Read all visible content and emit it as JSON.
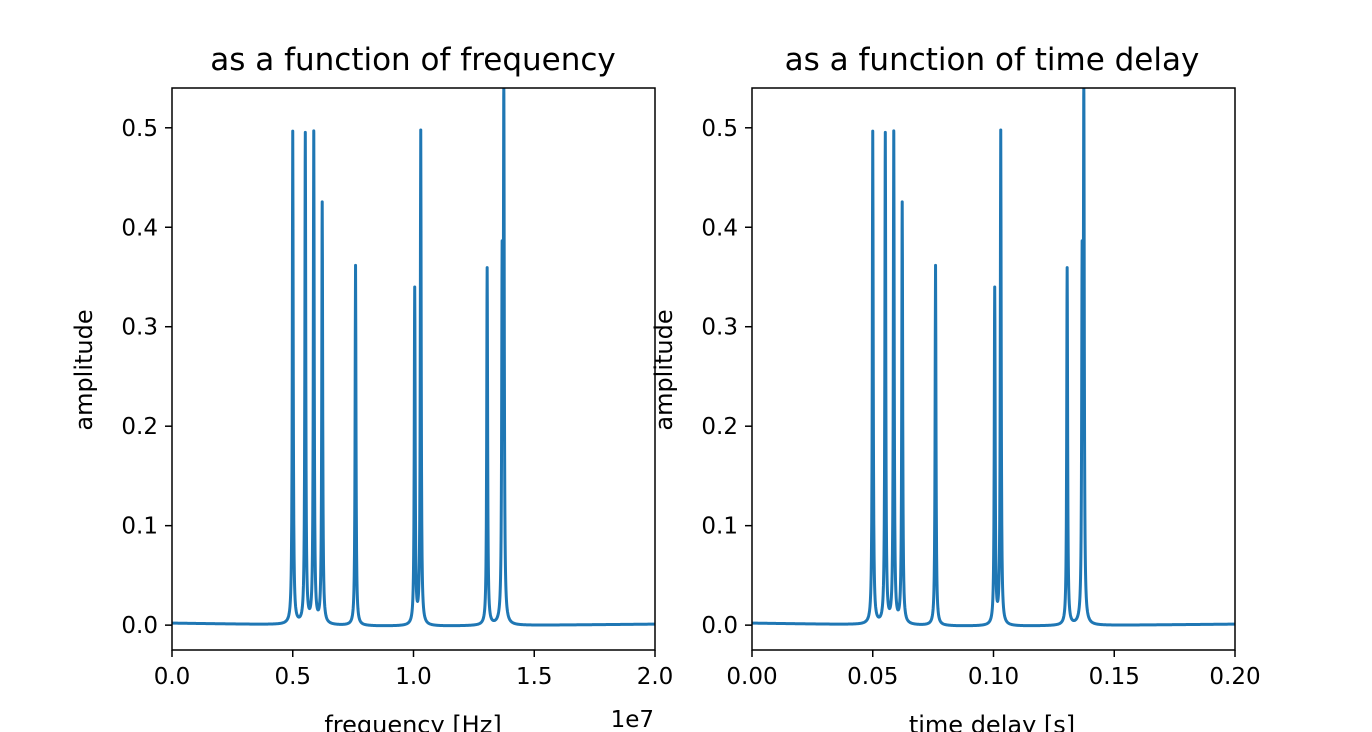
{
  "chart_data": [
    {
      "type": "line",
      "title": "as a function of frequency",
      "xlabel": "frequency [Hz]",
      "ylabel": "amplitude",
      "x_offset_label": "1e7",
      "xlim": [
        0,
        20000000
      ],
      "ylim": [
        -0.025,
        0.54
      ],
      "xticks": [
        0,
        5000000,
        10000000,
        15000000,
        20000000
      ],
      "xtick_labels": [
        "0.0",
        "0.5",
        "1.0",
        "1.5",
        "2.0"
      ],
      "yticks": [
        0,
        0.1,
        0.2,
        0.3,
        0.4,
        0.5
      ],
      "ytick_labels": [
        "0.0",
        "0.1",
        "0.2",
        "0.3",
        "0.4",
        "0.5"
      ],
      "color": "#1f77b4",
      "grid": false,
      "peaks": [
        {
          "x": 5000000,
          "y": 0.497
        },
        {
          "x": 5520000,
          "y": 0.494
        },
        {
          "x": 5870000,
          "y": 0.495
        },
        {
          "x": 6220000,
          "y": 0.425
        },
        {
          "x": 7600000,
          "y": 0.364
        },
        {
          "x": 10050000,
          "y": 0.339
        },
        {
          "x": 10300000,
          "y": 0.498
        },
        {
          "x": 13050000,
          "y": 0.361
        },
        {
          "x": 13670000,
          "y": 0.342
        },
        {
          "x": 13740000,
          "y": 0.515
        }
      ],
      "baseline": [
        {
          "x": 0,
          "y": 0.002
        },
        {
          "x": 8550000,
          "y": -0.001
        },
        {
          "x": 11400000,
          "y": -0.001
        },
        {
          "x": 20000000,
          "y": 0.001
        }
      ]
    },
    {
      "type": "line",
      "title": "as a function of time delay",
      "xlabel": "time delay [s]",
      "ylabel": "amplitude",
      "xlim": [
        0,
        0.2
      ],
      "ylim": [
        -0.025,
        0.54
      ],
      "xticks": [
        0,
        0.05,
        0.1,
        0.15,
        0.2
      ],
      "xtick_labels": [
        "0.00",
        "0.05",
        "0.10",
        "0.15",
        "0.20"
      ],
      "yticks": [
        0,
        0.1,
        0.2,
        0.3,
        0.4,
        0.5
      ],
      "ytick_labels": [
        "0.0",
        "0.1",
        "0.2",
        "0.3",
        "0.4",
        "0.5"
      ],
      "color": "#1f77b4",
      "grid": false,
      "peaks": [
        {
          "x": 0.05,
          "y": 0.497
        },
        {
          "x": 0.0552,
          "y": 0.494
        },
        {
          "x": 0.0587,
          "y": 0.495
        },
        {
          "x": 0.0622,
          "y": 0.425
        },
        {
          "x": 0.076,
          "y": 0.364
        },
        {
          "x": 0.1005,
          "y": 0.339
        },
        {
          "x": 0.103,
          "y": 0.498
        },
        {
          "x": 0.1305,
          "y": 0.361
        },
        {
          "x": 0.1367,
          "y": 0.342
        },
        {
          "x": 0.1374,
          "y": 0.515
        }
      ],
      "baseline": [
        {
          "x": 0,
          "y": 0.002
        },
        {
          "x": 0.0855,
          "y": -0.001
        },
        {
          "x": 0.114,
          "y": -0.001
        },
        {
          "x": 0.2,
          "y": 0.001
        }
      ]
    }
  ]
}
